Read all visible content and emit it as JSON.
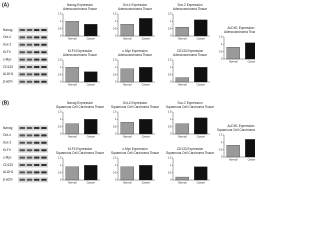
{
  "panels": [
    {
      "label": "(A)",
      "blot_labels": [
        "Nanog",
        "Oct-4",
        "Sox-2",
        "KLF4",
        "c-Myc",
        "CD133",
        "ALDH1",
        "β-actin"
      ]
    },
    {
      "label": "(B)",
      "blot_labels": [
        "Nanog",
        "Oct-4",
        "Sox-2",
        "KLF4",
        "c-Myc",
        "CD133",
        "ALDH1",
        "β-actin"
      ]
    }
  ],
  "chart_data": [
    {
      "type": "bar",
      "title": "Nanog Expression",
      "subtitle": "Adenocarcinoma Tissue",
      "categories": [
        "Normal",
        "Cancer"
      ],
      "values": [
        1.0,
        0.8
      ],
      "colors": [
        "#9a9a9a",
        "#111111"
      ],
      "ylim": [
        0,
        1.5
      ],
      "yticks": [
        0,
        0.5,
        1,
        1.5
      ]
    },
    {
      "type": "bar",
      "title": "Oct-4 Expression",
      "subtitle": "Adenocarcinoma Tissue",
      "categories": [
        "Normal",
        "Cancer"
      ],
      "values": [
        0.8,
        1.2
      ],
      "colors": [
        "#9a9a9a",
        "#111111"
      ],
      "ylim": [
        0,
        1.5
      ],
      "yticks": [
        0,
        0.5,
        1,
        1.5
      ]
    },
    {
      "type": "bar",
      "title": "Sox-2 Expression",
      "subtitle": "Adenocarcinoma Tissue",
      "categories": [
        "Normal",
        "Cancer"
      ],
      "values": [
        0.6,
        1.1
      ],
      "colors": [
        "#9a9a9a",
        "#111111"
      ],
      "ylim": [
        0,
        1.5
      ],
      "yticks": [
        0,
        0.5,
        1,
        1.5
      ]
    },
    {
      "type": "bar",
      "title": "KLF4 Expression",
      "subtitle": "Adenocarcinoma Tissue",
      "categories": [
        "Normal",
        "Cancer"
      ],
      "values": [
        1.0,
        0.7
      ],
      "colors": [
        "#9a9a9a",
        "#111111"
      ],
      "ylim": [
        0,
        1.5
      ],
      "yticks": [
        0,
        0.5,
        1,
        1.5
      ]
    },
    {
      "type": "bar",
      "title": "c-Myc Expression",
      "subtitle": "Adenocarcinoma Tissue",
      "categories": [
        "Normal",
        "Cancer"
      ],
      "values": [
        0.9,
        1.0
      ],
      "colors": [
        "#9a9a9a",
        "#111111"
      ],
      "ylim": [
        0,
        1.5
      ],
      "yticks": [
        0,
        0.5,
        1,
        1.5
      ]
    },
    {
      "type": "bar",
      "title": "CD133 Expression",
      "subtitle": "Adenocarcinoma Tissue",
      "categories": [
        "Normal",
        "Cancer"
      ],
      "values": [
        0.3,
        1.0
      ],
      "colors": [
        "#9a9a9a",
        "#111111"
      ],
      "ylim": [
        0,
        1.5
      ],
      "yticks": [
        0,
        0.5,
        1,
        1.5
      ]
    },
    {
      "type": "bar",
      "title": "ALDH1 Expression",
      "subtitle": "Adenocarcinoma Tissue",
      "categories": [
        "Normal",
        "Cancer"
      ],
      "values": [
        0.8,
        1.1
      ],
      "colors": [
        "#9a9a9a",
        "#111111"
      ],
      "ylim": [
        0,
        1.5
      ],
      "yticks": [
        0,
        0.5,
        1,
        1.5
      ]
    },
    {
      "type": "bar",
      "title": "Nanog Expression",
      "subtitle": "Squamous Cell Carcinoma Tissue",
      "categories": [
        "Normal",
        "Cancer"
      ],
      "values": [
        0.7,
        1.0
      ],
      "colors": [
        "#9a9a9a",
        "#111111"
      ],
      "ylim": [
        0,
        1.5
      ],
      "yticks": [
        0,
        0.5,
        1,
        1.5
      ]
    },
    {
      "type": "bar",
      "title": "Oct-4 Expression",
      "subtitle": "Squamous Cell Carcinoma Tissue",
      "categories": [
        "Normal",
        "Cancer"
      ],
      "values": [
        0.8,
        1.0
      ],
      "colors": [
        "#9a9a9a",
        "#111111"
      ],
      "ylim": [
        0,
        1.5
      ],
      "yticks": [
        0,
        0.5,
        1,
        1.5
      ]
    },
    {
      "type": "bar",
      "title": "Sox-2 Expression",
      "subtitle": "Squamous Cell Carcinoma Tissue",
      "categories": [
        "Normal",
        "Cancer"
      ],
      "values": [
        0.7,
        1.1
      ],
      "colors": [
        "#9a9a9a",
        "#111111"
      ],
      "ylim": [
        0,
        1.5
      ],
      "yticks": [
        0,
        0.5,
        1,
        1.5
      ]
    },
    {
      "type": "bar",
      "title": "KLF4 Expression",
      "subtitle": "Squamous Cell Carcinoma Tissue",
      "categories": [
        "Normal",
        "Cancer"
      ],
      "values": [
        0.9,
        1.0
      ],
      "colors": [
        "#9a9a9a",
        "#111111"
      ],
      "ylim": [
        0,
        1.5
      ],
      "yticks": [
        0,
        0.5,
        1,
        1.5
      ]
    },
    {
      "type": "bar",
      "title": "c-Myc Expression",
      "subtitle": "Squamous Cell Carcinoma Tissue",
      "categories": [
        "Normal",
        "Cancer"
      ],
      "values": [
        0.9,
        1.0
      ],
      "colors": [
        "#9a9a9a",
        "#111111"
      ],
      "ylim": [
        0,
        1.5
      ],
      "yticks": [
        0,
        0.5,
        1,
        1.5
      ]
    },
    {
      "type": "bar",
      "title": "CD133 Expression",
      "subtitle": "Squamous Cell Carcinoma Tissue",
      "categories": [
        "Normal",
        "Cancer"
      ],
      "values": [
        0.2,
        0.9
      ],
      "colors": [
        "#9a9a9a",
        "#111111"
      ],
      "ylim": [
        0,
        1.5
      ],
      "yticks": [
        0,
        0.5,
        1,
        1.5
      ]
    },
    {
      "type": "bar",
      "title": "ALDH1 Expression",
      "subtitle": "Squamous Cell Carcinoma Tissue",
      "categories": [
        "Normal",
        "Cancer"
      ],
      "values": [
        0.8,
        1.2
      ],
      "colors": [
        "#9a9a9a",
        "#111111"
      ],
      "ylim": [
        0,
        1.5
      ],
      "yticks": [
        0,
        0.5,
        1,
        1.5
      ]
    }
  ]
}
